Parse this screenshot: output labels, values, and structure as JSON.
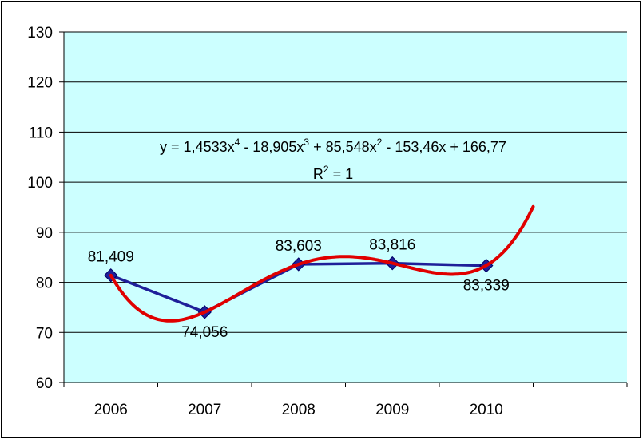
{
  "chart_data": {
    "type": "line",
    "categories": [
      "2006",
      "2007",
      "2008",
      "2009",
      "2010"
    ],
    "y_ticks": [
      "60",
      "70",
      "80",
      "90",
      "100",
      "110",
      "120",
      "130"
    ],
    "ylim": [
      60,
      130
    ],
    "grid": true,
    "series": [
      {
        "values": [
          81.409,
          74.056,
          83.603,
          83.816,
          83.339
        ],
        "data_labels": [
          "81,409",
          "74,056",
          "83,603",
          "83,816",
          "83,339"
        ],
        "color": "#1f1f99",
        "marker": "diamond"
      }
    ],
    "trendline": {
      "type": "polynomial-4",
      "coefficients": [
        1.4533,
        -18.905,
        85.548,
        -153.46,
        166.77
      ],
      "x_end": 5.5,
      "color": "#e00000",
      "equation": {
        "y": "y = 1,4533x",
        "e4": "4",
        "t2": " - 18,905x",
        "e3": "3",
        "t3": " + 85,548x",
        "e2": "2",
        "t4": " - 153,46x + 166,77"
      },
      "r2": {
        "r": "R",
        "e": "2",
        "v": " = 1"
      }
    },
    "colors": {
      "plot_bg": "#ccffff",
      "grid": "#000000"
    }
  }
}
